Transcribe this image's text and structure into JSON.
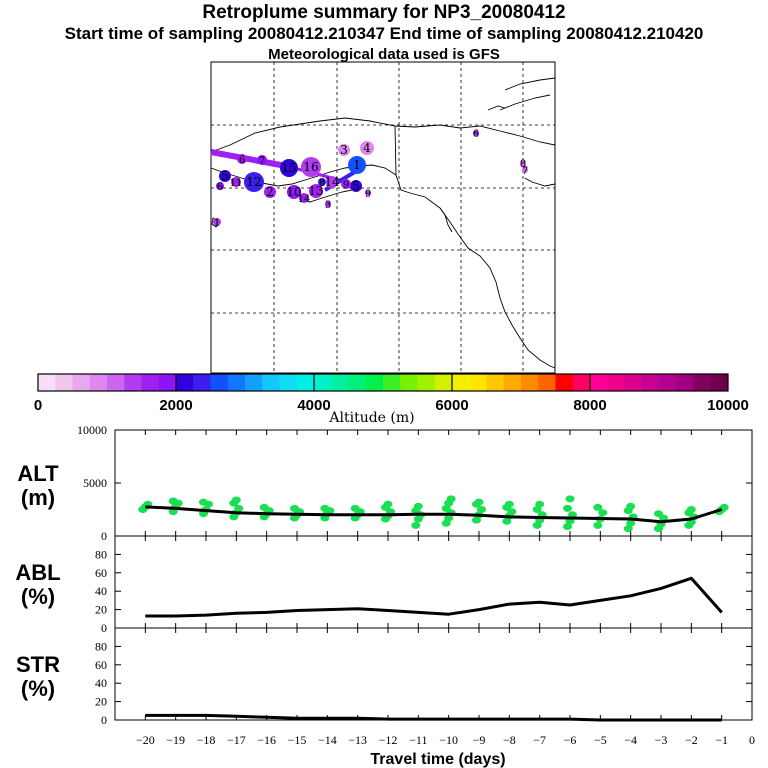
{
  "header": {
    "title": "Retroplume summary for NP3_20080412",
    "sampling": "Start time of sampling 20080412.210347     End time of sampling 20080412.210420",
    "meteo": "Meteorological data used is GFS"
  },
  "map": {
    "labels": [
      "1",
      "2",
      "3",
      "4",
      "5",
      "6",
      "7",
      "8",
      "9",
      "10",
      "11",
      "12",
      "13",
      "14",
      "15",
      "16"
    ]
  },
  "colorbar": {
    "title": "Altitude (m)",
    "ticks": [
      "0",
      "2000",
      "4000",
      "6000",
      "8000",
      "10000"
    ],
    "colors": [
      "#f7e0f7",
      "#efc7ef",
      "#e6a8ef",
      "#dd88ee",
      "#cc66ee",
      "#b43cf0",
      "#a020f0",
      "#8c14f5",
      "#3200dc",
      "#3c1ef0",
      "#1450ff",
      "#0f78ff",
      "#14a0ff",
      "#14c8ff",
      "#14dcf5",
      "#00f0e6",
      "#00f0c8",
      "#00f0a0",
      "#00f078",
      "#00f050",
      "#3cf028",
      "#78f000",
      "#a0f000",
      "#d2f000",
      "#f0f000",
      "#ffe600",
      "#ffc800",
      "#ffaa00",
      "#ff8c00",
      "#ff6400",
      "#ff0000",
      "#ff0064",
      "#ff0096",
      "#f0008c",
      "#dc0090",
      "#c80090",
      "#b40090",
      "#a00080",
      "#800060",
      "#6e004e"
    ]
  },
  "chart_data": [
    {
      "type": "line",
      "name": "ALT",
      "ylabel_line1": "ALT",
      "ylabel_line2": "(m)",
      "ylim": [
        0,
        10000
      ],
      "yticks": [
        "0",
        "5000",
        "10000"
      ],
      "x": [
        -20,
        -19,
        -18,
        -17,
        -16,
        -15,
        -14,
        -13,
        -12,
        -11,
        -10,
        -9,
        -8,
        -7,
        -6,
        -5,
        -4,
        -3,
        -2,
        -1
      ],
      "median": [
        2750,
        2600,
        2400,
        2200,
        2100,
        2050,
        2000,
        2000,
        2000,
        2050,
        2050,
        1950,
        1800,
        1750,
        1700,
        1650,
        1600,
        1350,
        1600,
        2500
      ],
      "scatter_color": "#18e050",
      "scatter": [
        {
          "x": -20,
          "y": [
            2500,
            2750,
            3000
          ]
        },
        {
          "x": -19,
          "y": [
            2300,
            2800,
            3100,
            3300
          ]
        },
        {
          "x": -18,
          "y": [
            2100,
            2500,
            3000,
            3200
          ]
        },
        {
          "x": -17,
          "y": [
            1800,
            2200,
            2600,
            3100,
            3400
          ]
        },
        {
          "x": -16,
          "y": [
            1800,
            2100,
            2400,
            2700
          ]
        },
        {
          "x": -15,
          "y": [
            1700,
            2000,
            2300,
            2600
          ]
        },
        {
          "x": -14,
          "y": [
            1700,
            2100,
            2400,
            2600
          ]
        },
        {
          "x": -13,
          "y": [
            1700,
            2000,
            2300,
            2600
          ]
        },
        {
          "x": -12,
          "y": [
            1600,
            1900,
            2300,
            2700,
            3000
          ]
        },
        {
          "x": -11,
          "y": [
            1000,
            1600,
            2000,
            2400,
            2800
          ]
        },
        {
          "x": -10,
          "y": [
            1200,
            1700,
            2200,
            2600,
            3100,
            3500
          ]
        },
        {
          "x": -9,
          "y": [
            1500,
            2000,
            2500,
            3000,
            3200
          ]
        },
        {
          "x": -8,
          "y": [
            1400,
            1900,
            2300,
            2700,
            3000
          ]
        },
        {
          "x": -7,
          "y": [
            1000,
            1500,
            2000,
            2500,
            3000
          ]
        },
        {
          "x": -6,
          "y": [
            900,
            1400,
            2000,
            2600,
            3500
          ]
        },
        {
          "x": -5,
          "y": [
            1000,
            1600,
            2200,
            2700
          ]
        },
        {
          "x": -4,
          "y": [
            700,
            1200,
            1800,
            2400,
            2800
          ]
        },
        {
          "x": -3,
          "y": [
            700,
            1100,
            1700,
            2100
          ]
        },
        {
          "x": -2,
          "y": [
            1000,
            1300,
            1800,
            2200,
            2500
          ]
        },
        {
          "x": -1,
          "y": [
            2300,
            2500,
            2700
          ]
        }
      ]
    },
    {
      "type": "line",
      "name": "ABL",
      "ylabel_line1": "ABL",
      "ylabel_line2": "(%)",
      "ylim": [
        0,
        100
      ],
      "yticks": [
        "0",
        "20",
        "40",
        "60",
        "80"
      ],
      "x": [
        -20,
        -19,
        -18,
        -17,
        -16,
        -15,
        -14,
        -13,
        -12,
        -11,
        -10,
        -9,
        -8,
        -7,
        -6,
        -5,
        -4,
        -3,
        -2,
        -1
      ],
      "values": [
        13,
        13,
        14,
        16,
        17,
        19,
        20,
        21,
        19,
        17,
        15,
        20,
        26,
        28,
        25,
        30,
        35,
        43,
        54,
        17
      ]
    },
    {
      "type": "line",
      "name": "STR",
      "ylabel_line1": "STR",
      "ylabel_line2": "(%)",
      "ylim": [
        0,
        100
      ],
      "yticks": [
        "0",
        "20",
        "40",
        "60",
        "80"
      ],
      "x": [
        -20,
        -19,
        -18,
        -17,
        -16,
        -15,
        -14,
        -13,
        -12,
        -11,
        -10,
        -9,
        -8,
        -7,
        -6,
        -5,
        -4,
        -3,
        -2,
        -1
      ],
      "values": [
        5,
        5,
        5,
        4,
        3,
        2,
        2,
        2,
        1,
        1,
        1,
        1,
        1,
        1,
        1,
        0,
        0,
        0,
        0,
        0
      ]
    }
  ],
  "xaxis": {
    "label": "Travel time (days)",
    "ticks": [
      "−20",
      "−19",
      "−18",
      "−17",
      "−16",
      "−15",
      "−14",
      "−13",
      "−12",
      "−11",
      "−10",
      "−9",
      "−8",
      "−7",
      "−6",
      "−5",
      "−4",
      "−3",
      "−2",
      "−1",
      "0"
    ]
  }
}
